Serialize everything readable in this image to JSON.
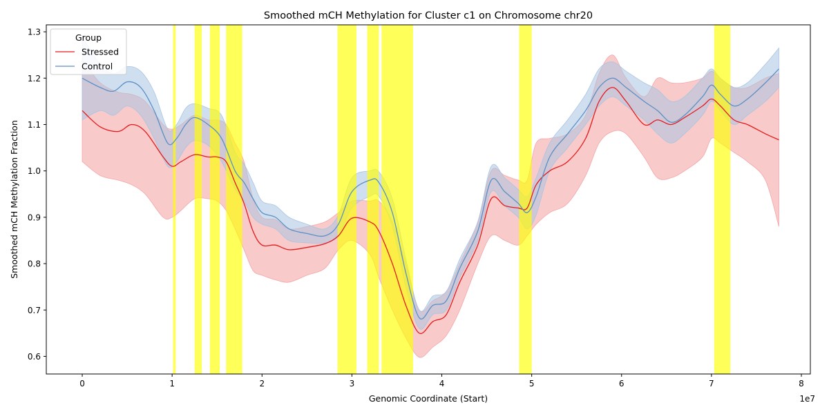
{
  "chart_data": {
    "type": "line",
    "title": "Smoothed mCH Methylation for Cluster c1 on Chromosome chr20",
    "xlabel": "Genomic Coordinate (Start)",
    "ylabel": "Smoothed mCH Methylation Fraction",
    "x_offset_label": "1e7",
    "xlim": [
      -0.4,
      8.1
    ],
    "ylim": [
      0.562,
      1.315
    ],
    "x_ticks": [
      0,
      1,
      2,
      3,
      4,
      5,
      6,
      7,
      8
    ],
    "x_tick_labels": [
      "0",
      "1",
      "2",
      "3",
      "4",
      "5",
      "6",
      "7",
      "8"
    ],
    "y_ticks": [
      0.6,
      0.7,
      0.8,
      0.9,
      1.0,
      1.1,
      1.2,
      1.3
    ],
    "y_tick_labels": [
      "0.6",
      "0.7",
      "0.8",
      "0.9",
      "1.0",
      "1.1",
      "1.2",
      "1.3"
    ],
    "grid": false,
    "legend": {
      "title": "Group",
      "placement": "top-left",
      "entries": [
        "Stressed",
        "Control"
      ]
    },
    "colors": {
      "stressed_line": "#e41a1c",
      "stressed_fill": "#f4a6a7",
      "control_line": "#5b8fc4",
      "control_fill": "#a9c4e2",
      "highlight": "#ffff00"
    },
    "highlight_regions": [
      [
        1.01,
        1.04
      ],
      [
        1.25,
        1.33
      ],
      [
        1.42,
        1.53
      ],
      [
        1.6,
        1.78
      ],
      [
        2.84,
        3.05
      ],
      [
        3.17,
        3.3
      ],
      [
        3.33,
        3.68
      ],
      [
        4.86,
        5.0
      ],
      [
        7.03,
        7.21
      ]
    ],
    "series": [
      {
        "name": "Stressed",
        "x": [
          0,
          0.2,
          0.4,
          0.55,
          0.7,
          0.9,
          1.0,
          1.1,
          1.25,
          1.4,
          1.5,
          1.6,
          1.7,
          1.8,
          1.9,
          2.0,
          2.15,
          2.3,
          2.5,
          2.7,
          2.85,
          3.0,
          3.2,
          3.3,
          3.45,
          3.6,
          3.75,
          3.9,
          4.05,
          4.2,
          4.4,
          4.55,
          4.7,
          4.85,
          4.95,
          5.05,
          5.2,
          5.4,
          5.6,
          5.75,
          5.9,
          6.05,
          6.25,
          6.4,
          6.55,
          6.7,
          6.9,
          7.0,
          7.1,
          7.25,
          7.4,
          7.6,
          7.75
        ],
        "values": [
          1.13,
          1.095,
          1.085,
          1.1,
          1.085,
          1.03,
          1.01,
          1.02,
          1.035,
          1.03,
          1.03,
          1.02,
          0.975,
          0.93,
          0.87,
          0.84,
          0.84,
          0.83,
          0.835,
          0.843,
          0.86,
          0.898,
          0.89,
          0.87,
          0.8,
          0.71,
          0.65,
          0.675,
          0.69,
          0.76,
          0.84,
          0.94,
          0.925,
          0.92,
          0.92,
          0.97,
          1.0,
          1.02,
          1.07,
          1.15,
          1.18,
          1.15,
          1.1,
          1.11,
          1.1,
          1.115,
          1.14,
          1.155,
          1.14,
          1.11,
          1.1,
          1.08,
          1.067
        ],
        "ci_low": [
          1.02,
          0.99,
          0.98,
          0.97,
          0.95,
          0.9,
          0.9,
          0.915,
          0.94,
          0.94,
          0.935,
          0.915,
          0.875,
          0.83,
          0.785,
          0.775,
          0.765,
          0.76,
          0.775,
          0.79,
          0.83,
          0.85,
          0.82,
          0.77,
          0.7,
          0.64,
          0.598,
          0.62,
          0.645,
          0.7,
          0.8,
          0.86,
          0.85,
          0.84,
          0.86,
          0.885,
          0.91,
          0.93,
          0.99,
          1.06,
          1.085,
          1.08,
          1.03,
          0.985,
          0.985,
          1.0,
          1.03,
          1.07,
          1.06,
          1.04,
          1.02,
          0.98,
          0.88
        ],
        "ci_high": [
          1.24,
          1.19,
          1.17,
          1.165,
          1.15,
          1.1,
          1.09,
          1.1,
          1.12,
          1.11,
          1.11,
          1.1,
          1.06,
          1.02,
          0.94,
          0.9,
          0.895,
          0.875,
          0.88,
          0.89,
          0.91,
          0.935,
          0.935,
          0.935,
          0.89,
          0.8,
          0.7,
          0.72,
          0.74,
          0.8,
          0.89,
          1.0,
          0.99,
          0.98,
          0.98,
          1.06,
          1.07,
          1.08,
          1.12,
          1.21,
          1.25,
          1.2,
          1.16,
          1.2,
          1.19,
          1.19,
          1.2,
          1.215,
          1.2,
          1.18,
          1.18,
          1.2,
          1.21
        ]
      },
      {
        "name": "Control",
        "x": [
          0,
          0.2,
          0.35,
          0.5,
          0.65,
          0.8,
          0.95,
          1.05,
          1.15,
          1.25,
          1.4,
          1.55,
          1.7,
          1.8,
          1.9,
          2.0,
          2.15,
          2.3,
          2.5,
          2.7,
          2.85,
          3.0,
          3.2,
          3.3,
          3.45,
          3.6,
          3.75,
          3.9,
          4.05,
          4.2,
          4.4,
          4.55,
          4.7,
          4.85,
          4.95,
          5.05,
          5.2,
          5.4,
          5.6,
          5.75,
          5.9,
          6.05,
          6.25,
          6.4,
          6.55,
          6.7,
          6.9,
          7.0,
          7.1,
          7.25,
          7.4,
          7.6,
          7.75
        ],
        "values": [
          1.2,
          1.18,
          1.172,
          1.192,
          1.18,
          1.13,
          1.06,
          1.07,
          1.1,
          1.115,
          1.1,
          1.07,
          1.0,
          0.975,
          0.94,
          0.91,
          0.9,
          0.875,
          0.865,
          0.86,
          0.885,
          0.955,
          0.98,
          0.975,
          0.91,
          0.78,
          0.683,
          0.71,
          0.72,
          0.79,
          0.87,
          0.98,
          0.955,
          0.93,
          0.91,
          0.945,
          1.03,
          1.08,
          1.13,
          1.18,
          1.2,
          1.18,
          1.15,
          1.13,
          1.105,
          1.12,
          1.16,
          1.185,
          1.165,
          1.14,
          1.155,
          1.19,
          1.22
        ],
        "ci_low": [
          1.11,
          1.13,
          1.12,
          1.14,
          1.12,
          1.07,
          1.01,
          1.02,
          1.05,
          1.065,
          1.055,
          1.02,
          0.96,
          0.935,
          0.9,
          0.885,
          0.875,
          0.85,
          0.845,
          0.845,
          0.86,
          0.92,
          0.945,
          0.945,
          0.88,
          0.75,
          0.66,
          0.69,
          0.7,
          0.77,
          0.85,
          0.955,
          0.925,
          0.9,
          0.875,
          0.905,
          1.0,
          1.05,
          1.1,
          1.14,
          1.16,
          1.14,
          1.11,
          1.08,
          1.06,
          1.08,
          1.12,
          1.15,
          1.13,
          1.1,
          1.12,
          1.15,
          1.18
        ],
        "ci_high": [
          1.29,
          1.23,
          1.21,
          1.225,
          1.215,
          1.17,
          1.09,
          1.1,
          1.135,
          1.145,
          1.135,
          1.12,
          1.04,
          1.015,
          0.975,
          0.935,
          0.925,
          0.9,
          0.885,
          0.875,
          0.905,
          0.985,
          1.0,
          0.998,
          0.94,
          0.81,
          0.7,
          0.73,
          0.74,
          0.81,
          0.89,
          1.01,
          0.985,
          0.96,
          0.945,
          0.985,
          1.06,
          1.11,
          1.165,
          1.22,
          1.235,
          1.215,
          1.19,
          1.175,
          1.15,
          1.16,
          1.2,
          1.22,
          1.2,
          1.18,
          1.19,
          1.23,
          1.265
        ]
      }
    ]
  }
}
